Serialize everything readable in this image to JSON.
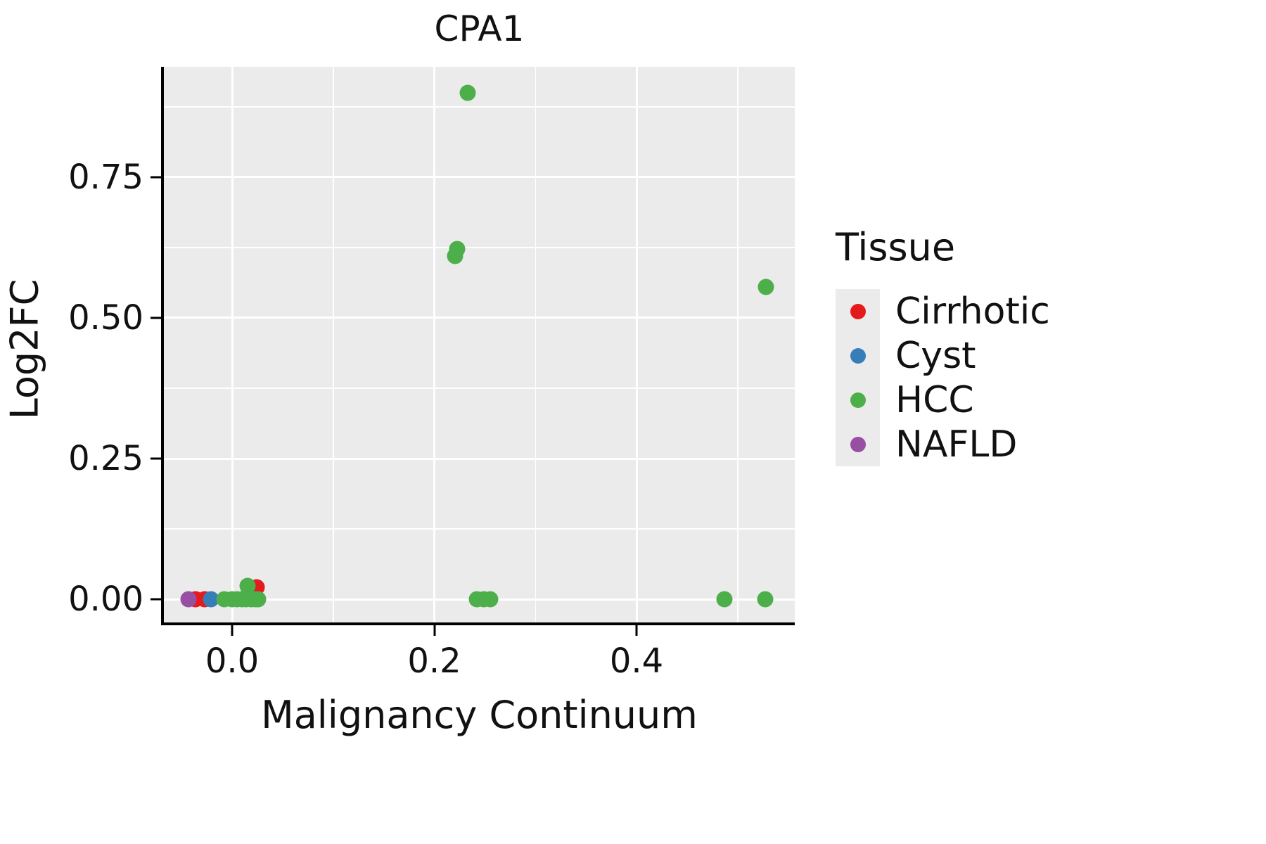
{
  "chart_data": {
    "type": "scatter",
    "title": "CPA1",
    "xlabel": "Malignancy Continuum",
    "ylabel": "Log2FC",
    "xlim": [
      -0.0675,
      0.5565
    ],
    "ylim": [
      -0.041,
      0.946
    ],
    "grid": true,
    "plot_background": "#EBEBEB",
    "gridline_color": "#FFFFFF",
    "x_ticks": {
      "values": [
        0.0,
        0.2,
        0.4
      ],
      "labels": [
        "0.0",
        "0.2",
        "0.4"
      ]
    },
    "y_ticks": {
      "values": [
        0.0,
        0.25,
        0.5,
        0.75
      ],
      "labels": [
        "0.00",
        "0.25",
        "0.50",
        "0.75"
      ]
    },
    "x_minor_ticks": [
      0.1,
      0.3,
      0.5
    ],
    "y_minor_ticks": [
      0.125,
      0.375,
      0.625,
      0.875
    ],
    "marker_diameter_px": 23,
    "legend": {
      "title": "Tissue",
      "position": "right",
      "entries": [
        "Cirrhotic",
        "Cyst",
        "HCC",
        "NAFLD"
      ]
    },
    "series": [
      {
        "name": "Cirrhotic",
        "color": "#E41A1C",
        "points": [
          [
            -0.036,
            0.0
          ],
          [
            -0.027,
            0.0
          ],
          [
            0.0245,
            0.021
          ]
        ]
      },
      {
        "name": "Cyst",
        "color": "#377EB8",
        "points": [
          [
            -0.021,
            0.0
          ]
        ]
      },
      {
        "name": "HCC",
        "color": "#4DAF4A",
        "points": [
          [
            -0.008,
            0.0
          ],
          [
            0.0,
            0.0
          ],
          [
            0.005,
            0.0
          ],
          [
            0.01,
            0.0
          ],
          [
            0.014,
            0.0
          ],
          [
            0.0155,
            0.0245
          ],
          [
            0.019,
            0.0
          ],
          [
            0.023,
            0.0
          ],
          [
            0.026,
            0.0
          ],
          [
            0.2205,
            0.61
          ],
          [
            0.2225,
            0.622
          ],
          [
            0.233,
            0.9
          ],
          [
            0.242,
            0.0
          ],
          [
            0.249,
            0.0
          ],
          [
            0.2555,
            0.0
          ],
          [
            0.487,
            0.0
          ],
          [
            0.527,
            0.0
          ],
          [
            0.528,
            0.555
          ]
        ]
      },
      {
        "name": "NAFLD",
        "color": "#984EA3",
        "points": [
          [
            -0.043,
            0.0
          ]
        ]
      }
    ]
  }
}
